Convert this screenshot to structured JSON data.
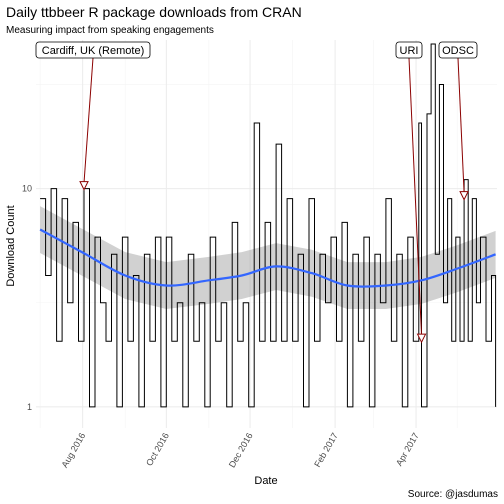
{
  "chart_data": {
    "type": "line",
    "title": "Daily ttbbeer R package downloads from CRAN",
    "subtitle": "Measuring impact from speaking engagements",
    "xlabel": "Date",
    "ylabel": "Download Count",
    "caption": "Source: @jasdumas",
    "x_range": [
      "2016-06-28",
      "2017-05-30"
    ],
    "y_scale": "log10",
    "y_range": [
      0.8,
      48
    ],
    "x_ticks": [
      {
        "date": "2016-08-01",
        "label": "Aug 2016"
      },
      {
        "date": "2016-10-01",
        "label": "Oct 2016"
      },
      {
        "date": "2016-12-01",
        "label": "Dec 2016"
      },
      {
        "date": "2017-02-01",
        "label": "Feb 2017"
      },
      {
        "date": "2017-04-01",
        "label": "Apr 2017"
      }
    ],
    "y_ticks": [
      {
        "value": 1,
        "label": "1"
      },
      {
        "value": 10,
        "label": "10"
      }
    ],
    "grid": true,
    "series": [
      {
        "values": [
          {
            "date": "2016-07-01",
            "y": 9
          },
          {
            "date": "2016-07-05",
            "y": 4
          },
          {
            "date": "2016-07-09",
            "y": 10
          },
          {
            "date": "2016-07-13",
            "y": 2
          },
          {
            "date": "2016-07-17",
            "y": 9
          },
          {
            "date": "2016-07-21",
            "y": 3
          },
          {
            "date": "2016-07-25",
            "y": 7
          },
          {
            "date": "2016-07-29",
            "y": 2
          },
          {
            "date": "2016-08-02",
            "y": 10
          },
          {
            "date": "2016-08-06",
            "y": 1
          },
          {
            "date": "2016-08-10",
            "y": 6
          },
          {
            "date": "2016-08-14",
            "y": 3
          },
          {
            "date": "2016-08-18",
            "y": 2
          },
          {
            "date": "2016-08-22",
            "y": 5
          },
          {
            "date": "2016-08-26",
            "y": 1
          },
          {
            "date": "2016-08-30",
            "y": 6
          },
          {
            "date": "2016-09-03",
            "y": 2
          },
          {
            "date": "2016-09-07",
            "y": 4
          },
          {
            "date": "2016-09-11",
            "y": 1
          },
          {
            "date": "2016-09-15",
            "y": 5
          },
          {
            "date": "2016-09-19",
            "y": 2
          },
          {
            "date": "2016-09-23",
            "y": 6
          },
          {
            "date": "2016-09-27",
            "y": 1
          },
          {
            "date": "2016-10-01",
            "y": 6
          },
          {
            "date": "2016-10-05",
            "y": 2
          },
          {
            "date": "2016-10-09",
            "y": 3
          },
          {
            "date": "2016-10-13",
            "y": 1
          },
          {
            "date": "2016-10-17",
            "y": 5
          },
          {
            "date": "2016-10-21",
            "y": 2
          },
          {
            "date": "2016-10-25",
            "y": 3
          },
          {
            "date": "2016-10-29",
            "y": 1
          },
          {
            "date": "2016-11-02",
            "y": 6
          },
          {
            "date": "2016-11-06",
            "y": 2
          },
          {
            "date": "2016-11-10",
            "y": 3
          },
          {
            "date": "2016-11-14",
            "y": 1
          },
          {
            "date": "2016-11-18",
            "y": 7
          },
          {
            "date": "2016-11-22",
            "y": 2
          },
          {
            "date": "2016-11-26",
            "y": 3
          },
          {
            "date": "2016-11-30",
            "y": 1
          },
          {
            "date": "2016-12-04",
            "y": 20
          },
          {
            "date": "2016-12-08",
            "y": 2
          },
          {
            "date": "2016-12-12",
            "y": 7
          },
          {
            "date": "2016-12-16",
            "y": 2
          },
          {
            "date": "2016-12-20",
            "y": 16
          },
          {
            "date": "2016-12-24",
            "y": 2
          },
          {
            "date": "2016-12-28",
            "y": 9
          },
          {
            "date": "2017-01-01",
            "y": 2
          },
          {
            "date": "2017-01-05",
            "y": 5
          },
          {
            "date": "2017-01-09",
            "y": 1
          },
          {
            "date": "2017-01-13",
            "y": 9
          },
          {
            "date": "2017-01-17",
            "y": 2
          },
          {
            "date": "2017-01-21",
            "y": 5
          },
          {
            "date": "2017-01-25",
            "y": 3
          },
          {
            "date": "2017-01-29",
            "y": 6
          },
          {
            "date": "2017-02-02",
            "y": 2
          },
          {
            "date": "2017-02-06",
            "y": 7
          },
          {
            "date": "2017-02-10",
            "y": 1
          },
          {
            "date": "2017-02-14",
            "y": 5
          },
          {
            "date": "2017-02-18",
            "y": 2
          },
          {
            "date": "2017-02-22",
            "y": 6
          },
          {
            "date": "2017-02-26",
            "y": 1
          },
          {
            "date": "2017-03-02",
            "y": 5
          },
          {
            "date": "2017-03-06",
            "y": 3
          },
          {
            "date": "2017-03-10",
            "y": 9
          },
          {
            "date": "2017-03-14",
            "y": 2
          },
          {
            "date": "2017-03-18",
            "y": 5
          },
          {
            "date": "2017-03-22",
            "y": 1
          },
          {
            "date": "2017-03-26",
            "y": 6
          },
          {
            "date": "2017-03-30",
            "y": 2
          },
          {
            "date": "2017-04-03",
            "y": 20
          },
          {
            "date": "2017-04-05",
            "y": 1
          },
          {
            "date": "2017-04-09",
            "y": 22
          },
          {
            "date": "2017-04-12",
            "y": 46
          },
          {
            "date": "2017-04-15",
            "y": 5
          },
          {
            "date": "2017-04-18",
            "y": 30
          },
          {
            "date": "2017-04-21",
            "y": 3
          },
          {
            "date": "2017-04-24",
            "y": 9
          },
          {
            "date": "2017-04-27",
            "y": 2
          },
          {
            "date": "2017-04-30",
            "y": 6
          },
          {
            "date": "2017-05-03",
            "y": 2
          },
          {
            "date": "2017-05-06",
            "y": 11
          },
          {
            "date": "2017-05-09",
            "y": 2
          },
          {
            "date": "2017-05-12",
            "y": 9
          },
          {
            "date": "2017-05-15",
            "y": 3
          },
          {
            "date": "2017-05-18",
            "y": 6
          },
          {
            "date": "2017-05-22",
            "y": 2
          },
          {
            "date": "2017-05-26",
            "y": 4
          },
          {
            "date": "2017-05-29",
            "y": 1
          }
        ]
      }
    ],
    "smooth": [
      {
        "date": "2016-07-01",
        "y": 6.5
      },
      {
        "date": "2016-08-01",
        "y": 5.1
      },
      {
        "date": "2016-09-01",
        "y": 4.0
      },
      {
        "date": "2016-10-01",
        "y": 3.6
      },
      {
        "date": "2016-11-01",
        "y": 3.8
      },
      {
        "date": "2016-11-25",
        "y": 4.0
      },
      {
        "date": "2016-12-20",
        "y": 4.4
      },
      {
        "date": "2017-01-15",
        "y": 4.1
      },
      {
        "date": "2017-02-10",
        "y": 3.6
      },
      {
        "date": "2017-03-10",
        "y": 3.6
      },
      {
        "date": "2017-04-05",
        "y": 3.8
      },
      {
        "date": "2017-05-01",
        "y": 4.3
      },
      {
        "date": "2017-05-29",
        "y": 5.0
      }
    ],
    "smooth_band": {
      "lower_factor": 0.78,
      "upper_factor": 1.28
    },
    "annotations": [
      {
        "label": "Cardiff, UK (Remote)",
        "target_date": "2016-08-02",
        "target_y": 10
      },
      {
        "label": "URI",
        "target_date": "2017-04-05",
        "target_y": 2
      },
      {
        "label": "ODSC",
        "target_date": "2017-05-06",
        "target_y": 9
      }
    ],
    "colors": {
      "line": "#000000",
      "smooth": "#3366FF",
      "band": "#999999",
      "annotation": "#8B0000"
    }
  }
}
